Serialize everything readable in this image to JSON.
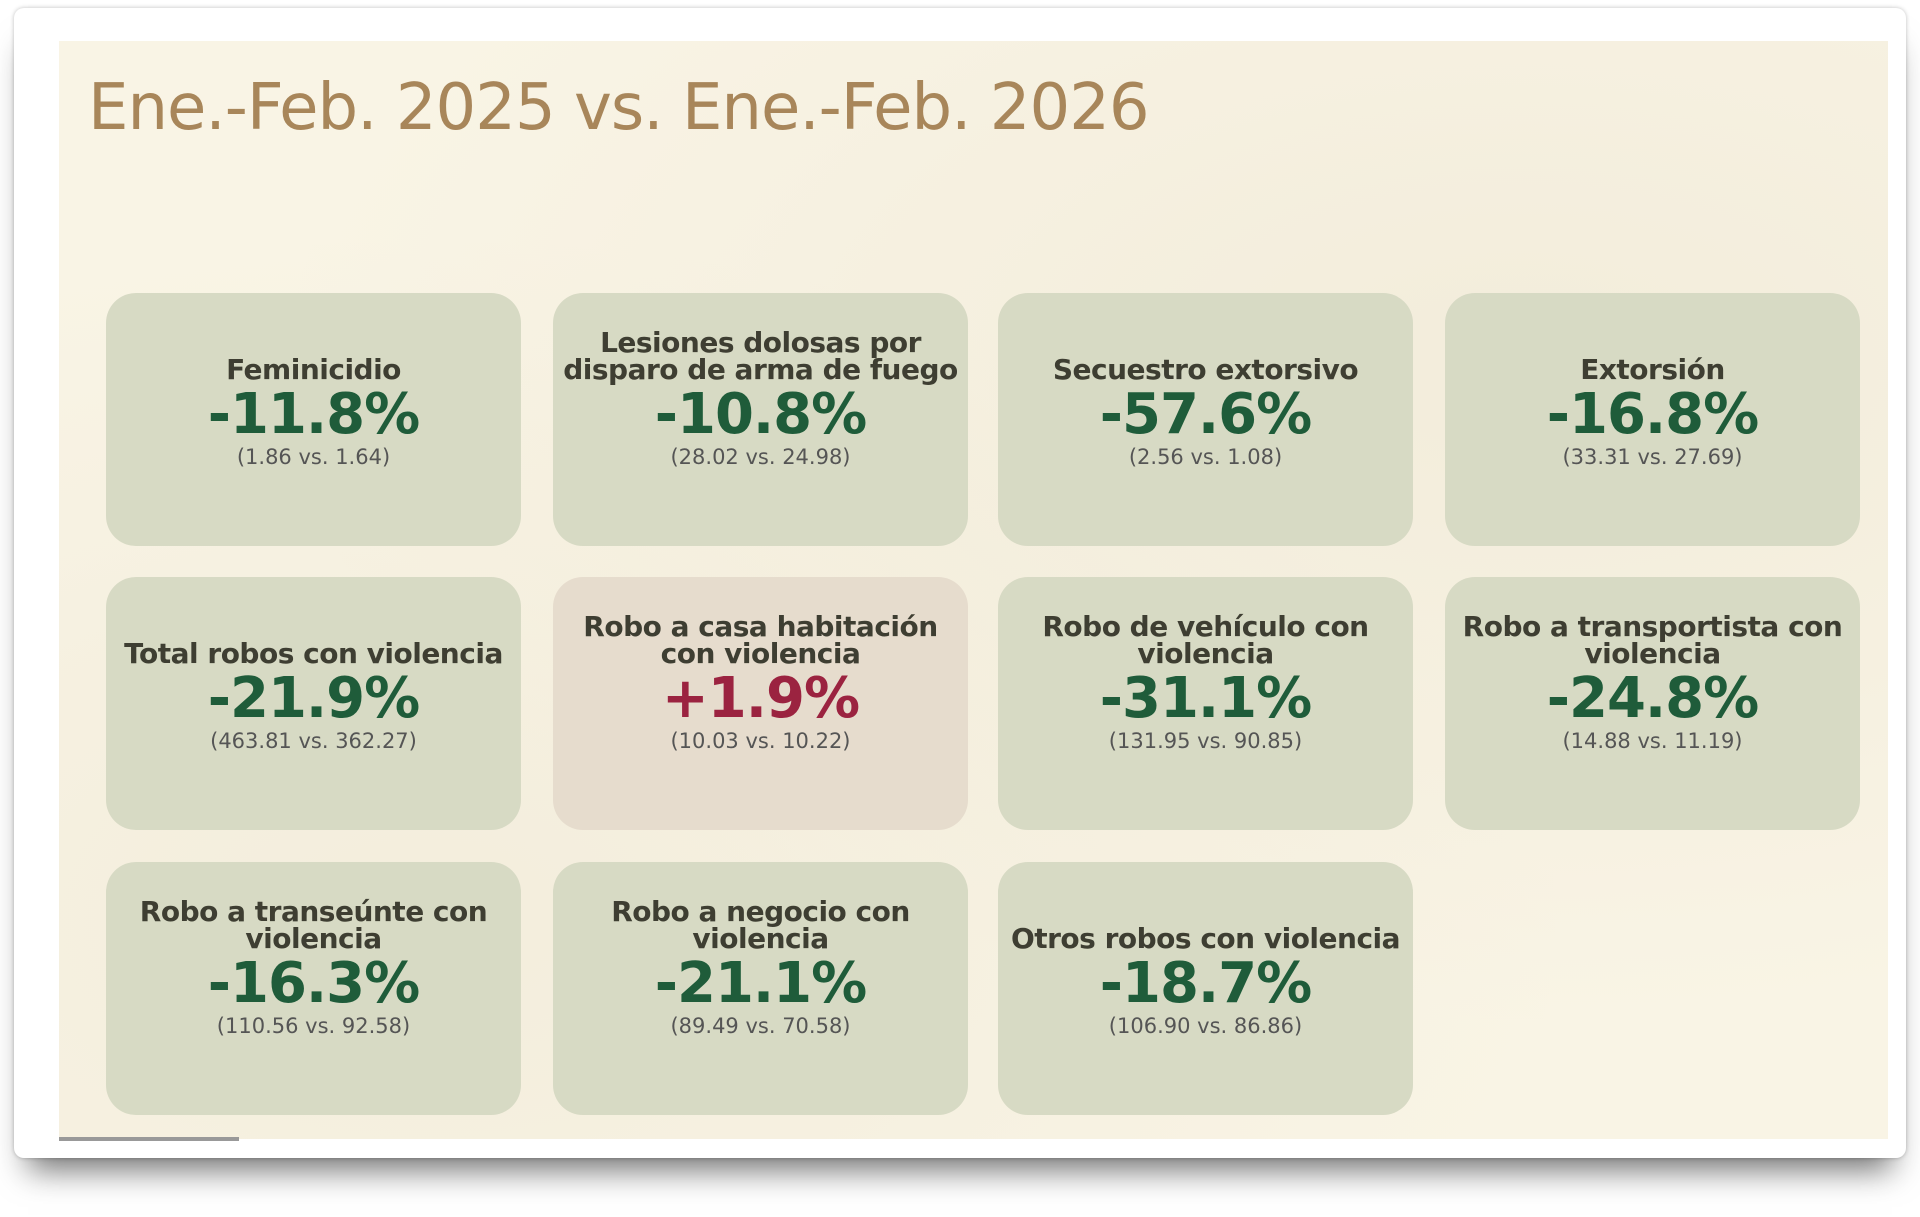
{
  "title": "Ene.-Feb. 2025 vs. Ene.-Feb. 2026",
  "colors": {
    "decrease": "#1f5c3a",
    "increase": "#9b2340",
    "card_bg": "#d7dac4",
    "card_up_bg": "#e6dccd",
    "title": "#a8865a"
  },
  "cards": [
    {
      "label": "Feminicidio",
      "change": "-11.8%",
      "comparison": "(1.86 vs. 1.64)",
      "direction": "down"
    },
    {
      "label": "Lesiones dolosas por disparo de arma de fuego",
      "change": "-10.8%",
      "comparison": "(28.02 vs. 24.98)",
      "direction": "down"
    },
    {
      "label": "Secuestro extorsivo",
      "change": "-57.6%",
      "comparison": "(2.56 vs. 1.08)",
      "direction": "down"
    },
    {
      "label": "Extorsión",
      "change": "-16.8%",
      "comparison": "(33.31 vs. 27.69)",
      "direction": "down"
    },
    {
      "label": "Total robos con violencia",
      "change": "-21.9%",
      "comparison": "(463.81 vs. 362.27)",
      "direction": "down"
    },
    {
      "label": "Robo a casa habitación con violencia",
      "change": "+1.9%",
      "comparison": "(10.03 vs. 10.22)",
      "direction": "up"
    },
    {
      "label": "Robo de vehículo con violencia",
      "change": "-31.1%",
      "comparison": "(131.95 vs. 90.85)",
      "direction": "down"
    },
    {
      "label": "Robo a transportista con violencia",
      "change": "-24.8%",
      "comparison": "(14.88 vs. 11.19)",
      "direction": "down"
    },
    {
      "label": "Robo a transeúnte con violencia",
      "change": "-16.3%",
      "comparison": "(110.56 vs. 92.58)",
      "direction": "down"
    },
    {
      "label": "Robo a negocio con violencia",
      "change": "-21.1%",
      "comparison": "(89.49 vs. 70.58)",
      "direction": "down"
    },
    {
      "label": "Otros robos con violencia",
      "change": "-18.7%",
      "comparison": "(106.90 vs. 86.86)",
      "direction": "down"
    }
  ]
}
